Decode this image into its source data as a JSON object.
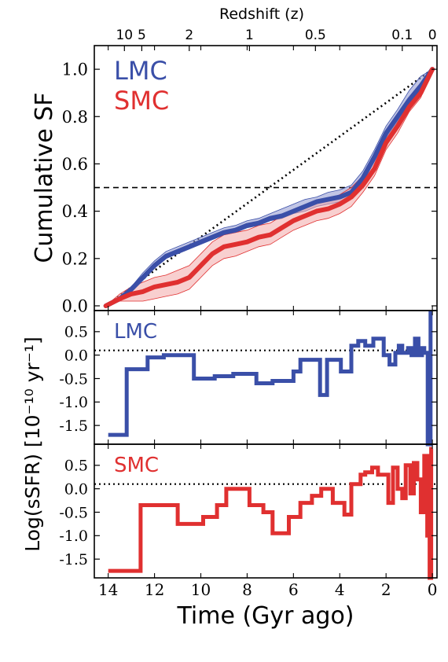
{
  "chart_data": [
    {
      "type": "line",
      "panel": "cumulative",
      "ylabel": "Cumulative SF",
      "ylim": [
        -0.02,
        1.1
      ],
      "yticks": [
        "0.0",
        "0.2",
        "0.4",
        "0.6",
        "0.8",
        "1.0"
      ],
      "ytick_values": [
        0.0,
        0.2,
        0.4,
        0.6,
        0.8,
        1.0
      ],
      "legend": [
        "LMC",
        "SMC"
      ],
      "legend_position": "top-left",
      "top_axis": {
        "label": "Redshift (z)",
        "ticks": [
          "10",
          "5",
          "2",
          "1",
          "0.5",
          "0.1",
          "0"
        ],
        "tick_times_gyr": [
          13.3,
          12.55,
          10.5,
          7.9,
          5.05,
          1.3,
          0.0
        ]
      },
      "reference_lines": [
        {
          "style": "dashed",
          "y": 0.5
        },
        {
          "style": "dotted",
          "from": [
            14.1,
            0.0
          ],
          "to": [
            0.0,
            1.0
          ]
        }
      ],
      "series": [
        {
          "name": "LMC",
          "color": "#3a4fa8",
          "band_color": "#8e96d0",
          "x": [
            14.1,
            13.5,
            13.0,
            12.5,
            12.0,
            11.5,
            11.0,
            10.5,
            10.0,
            9.5,
            9.0,
            8.5,
            8.0,
            7.5,
            7.0,
            6.5,
            6.0,
            5.5,
            5.0,
            4.5,
            4.0,
            3.5,
            3.0,
            2.5,
            2.0,
            1.5,
            1.0,
            0.5,
            0.0
          ],
          "y": [
            0.0,
            0.03,
            0.07,
            0.12,
            0.17,
            0.21,
            0.23,
            0.25,
            0.27,
            0.29,
            0.31,
            0.32,
            0.34,
            0.35,
            0.37,
            0.38,
            0.4,
            0.42,
            0.44,
            0.45,
            0.46,
            0.48,
            0.54,
            0.63,
            0.73,
            0.8,
            0.87,
            0.93,
            1.0
          ],
          "band_low": [
            0.0,
            0.02,
            0.06,
            0.11,
            0.16,
            0.2,
            0.22,
            0.24,
            0.26,
            0.28,
            0.3,
            0.31,
            0.33,
            0.34,
            0.36,
            0.37,
            0.39,
            0.4,
            0.42,
            0.43,
            0.44,
            0.46,
            0.52,
            0.61,
            0.71,
            0.78,
            0.85,
            0.91,
            1.0
          ],
          "band_high": [
            0.0,
            0.04,
            0.08,
            0.14,
            0.19,
            0.23,
            0.25,
            0.27,
            0.29,
            0.31,
            0.33,
            0.34,
            0.36,
            0.37,
            0.39,
            0.41,
            0.43,
            0.45,
            0.46,
            0.48,
            0.49,
            0.51,
            0.57,
            0.66,
            0.76,
            0.83,
            0.91,
            0.97,
            1.0
          ]
        },
        {
          "name": "SMC",
          "color": "#e03030",
          "band_color": "#f2a7a7",
          "x": [
            14.1,
            13.5,
            13.0,
            12.5,
            12.0,
            11.5,
            11.0,
            10.5,
            10.0,
            9.5,
            9.0,
            8.5,
            8.0,
            7.5,
            7.0,
            6.5,
            6.0,
            5.5,
            5.0,
            4.5,
            4.0,
            3.5,
            3.0,
            2.5,
            2.0,
            1.5,
            1.0,
            0.5,
            0.0
          ],
          "y": [
            0.0,
            0.03,
            0.05,
            0.06,
            0.08,
            0.09,
            0.1,
            0.12,
            0.17,
            0.22,
            0.25,
            0.26,
            0.27,
            0.29,
            0.3,
            0.33,
            0.36,
            0.38,
            0.4,
            0.41,
            0.43,
            0.46,
            0.51,
            0.58,
            0.69,
            0.76,
            0.84,
            0.9,
            1.0
          ],
          "band_low": [
            0.0,
            0.02,
            0.02,
            0.02,
            0.03,
            0.04,
            0.05,
            0.07,
            0.12,
            0.17,
            0.2,
            0.21,
            0.23,
            0.25,
            0.26,
            0.29,
            0.32,
            0.34,
            0.36,
            0.37,
            0.39,
            0.42,
            0.48,
            0.55,
            0.66,
            0.73,
            0.82,
            0.88,
            1.0
          ],
          "band_high": [
            0.0,
            0.05,
            0.08,
            0.1,
            0.12,
            0.13,
            0.15,
            0.17,
            0.22,
            0.27,
            0.3,
            0.31,
            0.32,
            0.34,
            0.35,
            0.38,
            0.4,
            0.42,
            0.44,
            0.45,
            0.47,
            0.5,
            0.55,
            0.62,
            0.72,
            0.79,
            0.87,
            0.93,
            1.0
          ]
        }
      ]
    },
    {
      "type": "line",
      "panel": "ssfr-lmc",
      "label": "LMC",
      "ylim": [
        -1.9,
        0.95
      ],
      "yticks": [
        "0.5",
        "0.0",
        "-0.5",
        "-1.0",
        "-1.5"
      ],
      "ytick_values": [
        0.5,
        0.0,
        -0.5,
        -1.0,
        -1.5
      ],
      "reference_lines": [
        {
          "style": "dotted",
          "y": 0.1
        }
      ],
      "series": [
        {
          "name": "LMC",
          "color": "#3a4fa8",
          "step": true,
          "x": [
            14.0,
            13.2,
            13.2,
            12.3,
            12.3,
            11.6,
            11.6,
            10.3,
            10.3,
            9.4,
            9.4,
            8.6,
            8.6,
            7.6,
            7.6,
            6.9,
            6.9,
            6.0,
            6.0,
            5.7,
            5.7,
            5.4,
            5.4,
            4.85,
            4.85,
            4.55,
            4.55,
            3.95,
            3.95,
            3.5,
            3.5,
            3.2,
            3.2,
            2.9,
            2.9,
            2.55,
            2.55,
            2.1,
            2.1,
            1.85,
            1.85,
            1.6,
            1.6,
            1.45,
            1.45,
            1.3,
            1.3,
            1.05,
            1.05,
            0.9,
            0.9,
            0.75,
            0.75,
            0.6,
            0.6,
            0.45,
            0.45,
            0.35,
            0.35,
            0.2,
            0.2,
            0.2,
            0.08,
            0.08,
            0.0
          ],
          "y": [
            -1.7,
            -1.7,
            -0.3,
            -0.3,
            -0.05,
            -0.05,
            0.0,
            0.0,
            -0.5,
            -0.5,
            -0.45,
            -0.45,
            -0.4,
            -0.4,
            -0.6,
            -0.6,
            -0.55,
            -0.55,
            -0.35,
            -0.35,
            -0.1,
            -0.1,
            -0.1,
            -0.1,
            -0.85,
            -0.85,
            -0.1,
            -0.1,
            -0.35,
            -0.35,
            0.2,
            0.2,
            0.3,
            0.3,
            0.2,
            0.2,
            0.35,
            0.35,
            0.0,
            0.0,
            -0.2,
            -0.2,
            0.05,
            0.05,
            0.2,
            0.2,
            0.05,
            0.05,
            0.15,
            0.15,
            0.0,
            0.0,
            0.35,
            0.35,
            0.0,
            0.0,
            0.15,
            0.15,
            0.05,
            0.05,
            -0.5,
            -1.9,
            -1.9,
            0.9,
            0.9
          ]
        }
      ]
    },
    {
      "type": "line",
      "panel": "ssfr-smc",
      "label": "SMC",
      "ylabel_shared": "Log(sSFR)  [10⁻¹⁰ yr⁻¹]",
      "ylim": [
        -1.9,
        0.95
      ],
      "yticks": [
        "0.5",
        "0.0",
        "-0.5",
        "-1.0",
        "-1.5"
      ],
      "ytick_values": [
        0.5,
        0.0,
        -0.5,
        -1.0,
        -1.5
      ],
      "xlabel": "Time (Gyr ago)",
      "xlim": [
        14.6,
        -0.2
      ],
      "xticks": [
        "14",
        "12",
        "10",
        "8",
        "6",
        "4",
        "2",
        "0"
      ],
      "xtick_values": [
        14,
        12,
        10,
        8,
        6,
        4,
        2,
        0
      ],
      "reference_lines": [
        {
          "style": "dotted",
          "y": 0.1
        }
      ],
      "series": [
        {
          "name": "SMC",
          "color": "#e03030",
          "step": true,
          "x": [
            14.0,
            12.6,
            12.6,
            11.0,
            11.0,
            9.9,
            9.9,
            9.3,
            9.3,
            8.9,
            8.9,
            7.9,
            7.9,
            7.3,
            7.3,
            6.9,
            6.9,
            6.2,
            6.2,
            5.7,
            5.7,
            5.2,
            5.2,
            4.8,
            4.8,
            4.3,
            4.3,
            3.8,
            3.8,
            3.5,
            3.5,
            3.1,
            3.1,
            2.9,
            2.9,
            2.6,
            2.6,
            2.35,
            2.35,
            1.9,
            1.9,
            1.7,
            1.7,
            1.5,
            1.5,
            1.3,
            1.3,
            1.15,
            1.15,
            0.95,
            0.95,
            0.8,
            0.8,
            0.65,
            0.65,
            0.5,
            0.5,
            0.35,
            0.35,
            0.22,
            0.22,
            0.12,
            0.12,
            0.05,
            0.05,
            0.0
          ],
          "y": [
            -1.75,
            -1.75,
            -0.35,
            -0.35,
            -0.75,
            -0.75,
            -0.6,
            -0.6,
            -0.35,
            -0.35,
            0.0,
            0.0,
            -0.35,
            -0.35,
            -0.5,
            -0.5,
            -0.95,
            -0.95,
            -0.6,
            -0.6,
            -0.3,
            -0.3,
            -0.15,
            -0.15,
            0.0,
            0.0,
            -0.3,
            -0.3,
            -0.55,
            -0.55,
            0.1,
            0.1,
            0.3,
            0.3,
            0.35,
            0.35,
            0.45,
            0.45,
            0.3,
            0.3,
            -0.3,
            -0.3,
            0.45,
            0.45,
            0.0,
            0.0,
            -0.2,
            -0.2,
            0.5,
            0.5,
            -0.1,
            -0.1,
            0.55,
            0.55,
            0.2,
            0.2,
            -0.5,
            -0.5,
            0.7,
            0.7,
            -1.0,
            -1.0,
            -1.9,
            -1.9,
            0.85,
            0.85
          ]
        }
      ]
    }
  ]
}
